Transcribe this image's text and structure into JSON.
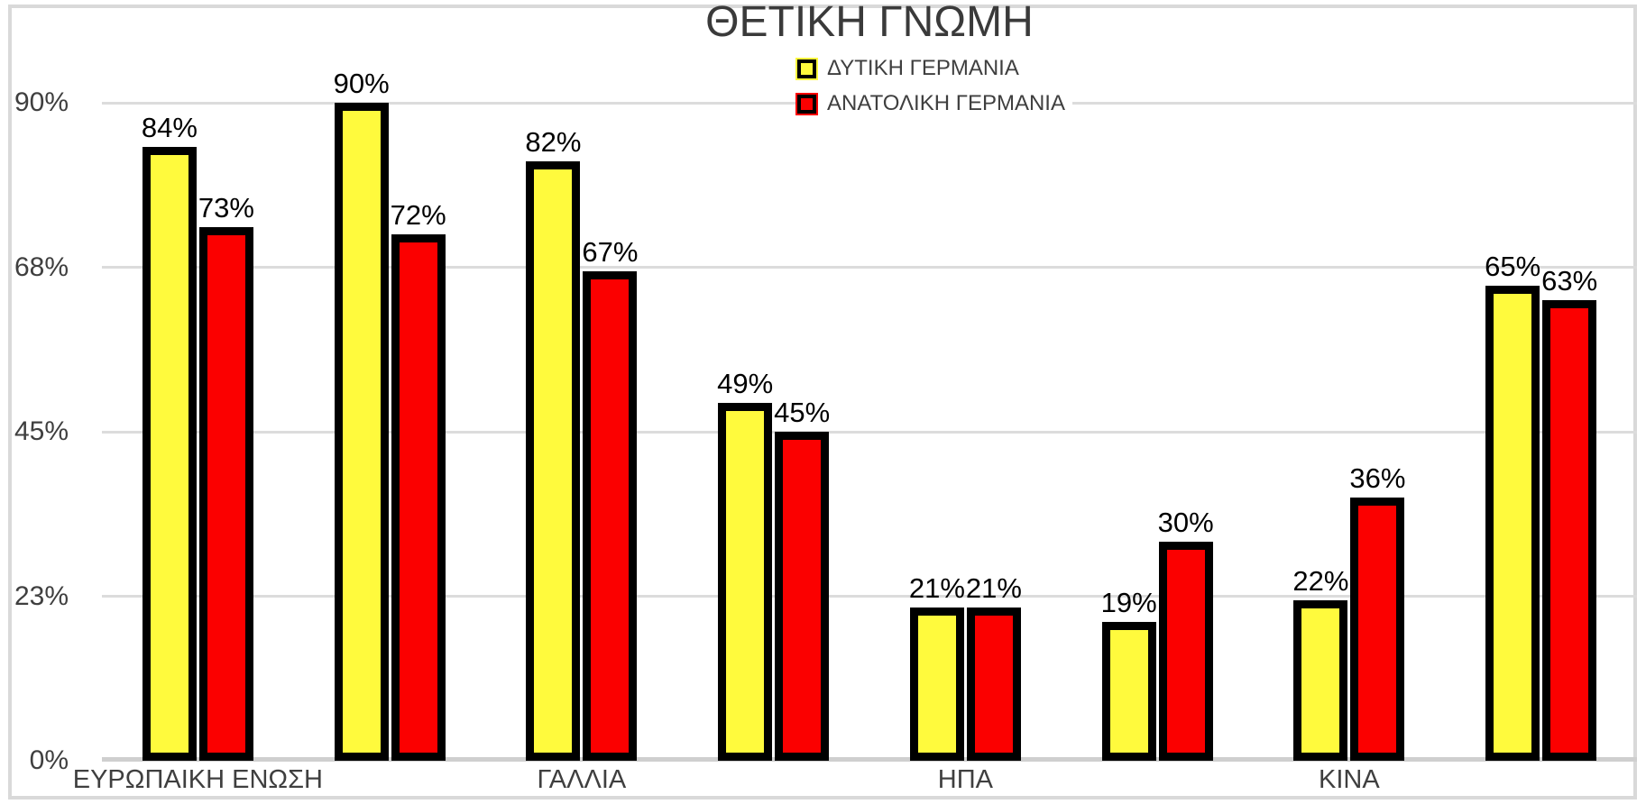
{
  "title": "ΘΕΤΙΚΗ ΓΝΩΜΗ",
  "chart_data": {
    "type": "bar",
    "title": "ΘΕΤΙΚΗ ΓΝΩΜΗ",
    "categories": [
      "ΕΥΡΩΠΑΙΚΗ ΕΝΩΣΗ",
      "",
      "ΓΑΛΛΙΑ",
      "",
      "ΗΠΑ",
      "",
      "ΚΙΝΑ",
      ""
    ],
    "series": [
      {
        "name": "ΔΥΤΙΚΗ ΓΕΡΜΑΝΙΑ",
        "color": "#fffa3d",
        "values": [
          84,
          90,
          82,
          49,
          21,
          19,
          22,
          65
        ]
      },
      {
        "name": "ΑΝΑΤΟΛΙΚΗ ΓΕΡΜΑΝΙΑ",
        "color": "#fb0000",
        "values": [
          73,
          72,
          67,
          45,
          21,
          30,
          36,
          63
        ]
      }
    ],
    "data_labels": [
      "84%",
      "90%",
      "82%",
      "49%",
      "21%",
      "19%",
      "22%",
      "65%",
      "73%",
      "72%",
      "67%",
      "45%",
      "21%",
      "30%",
      "36%",
      "63%"
    ],
    "y_axis": {
      "range": [
        0,
        90
      ],
      "ticks": [
        {
          "value": 0,
          "label": "0%"
        },
        {
          "value": 22.5,
          "label": "23%"
        },
        {
          "value": 45,
          "label": "45%"
        },
        {
          "value": 67.5,
          "label": "68%"
        },
        {
          "value": 90,
          "label": "90%"
        }
      ]
    },
    "grid": true,
    "legend_position": "top",
    "colors": {
      "bar_outline": "#000000",
      "grid": "#dcdcdc",
      "axis_line": "#cfcfcf",
      "frame": "#d9d9d9",
      "axis_text": "#3f3f3f",
      "title_text": "#3a3a3a",
      "data_label_text": "#000000"
    }
  }
}
